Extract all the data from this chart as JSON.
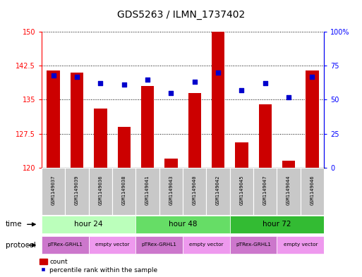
{
  "title": "GDS5263 / ILMN_1737402",
  "samples": [
    "GSM1149037",
    "GSM1149039",
    "GSM1149036",
    "GSM1149038",
    "GSM1149041",
    "GSM1149043",
    "GSM1149040",
    "GSM1149042",
    "GSM1149045",
    "GSM1149047",
    "GSM1149044",
    "GSM1149046"
  ],
  "counts": [
    141.5,
    141.0,
    133.0,
    129.0,
    138.0,
    122.0,
    136.5,
    150.0,
    125.5,
    134.0,
    121.5,
    141.5
  ],
  "percentiles": [
    68,
    67,
    62,
    61,
    65,
    55,
    63,
    70,
    57,
    62,
    52,
    67
  ],
  "ylim_left": [
    120,
    150
  ],
  "ylim_right": [
    0,
    100
  ],
  "yticks_left": [
    120,
    127.5,
    135,
    142.5,
    150
  ],
  "ytick_labels_left": [
    "120",
    "127.5",
    "135",
    "142.5",
    "150"
  ],
  "yticks_right": [
    0,
    25,
    50,
    75,
    100
  ],
  "ytick_labels_right": [
    "0",
    "25",
    "50",
    "75",
    "100%"
  ],
  "bar_color": "#cc0000",
  "dot_color": "#0000cc",
  "bar_bottom": 120,
  "time_groups": [
    {
      "label": "hour 24",
      "start": 0,
      "end": 4
    },
    {
      "label": "hour 48",
      "start": 4,
      "end": 8
    },
    {
      "label": "hour 72",
      "start": 8,
      "end": 12
    }
  ],
  "time_colors": [
    "#bbffbb",
    "#66dd66",
    "#33bb33"
  ],
  "protocol_groups": [
    {
      "label": "pTRex-GRHL1",
      "start": 0,
      "end": 2
    },
    {
      "label": "empty vector",
      "start": 2,
      "end": 4
    },
    {
      "label": "pTRex-GRHL1",
      "start": 4,
      "end": 6
    },
    {
      "label": "empty vector",
      "start": 6,
      "end": 8
    },
    {
      "label": "pTRex-GRHL1",
      "start": 8,
      "end": 10
    },
    {
      "label": "empty vector",
      "start": 10,
      "end": 12
    }
  ],
  "proto_colors": [
    "#cc77cc",
    "#ee99ee"
  ],
  "time_label": "time",
  "protocol_label": "protocol",
  "legend_count_label": "count",
  "legend_pct_label": "percentile rank within the sample",
  "bg_color": "#ffffff",
  "title_fontsize": 10,
  "tick_fontsize": 7,
  "bar_width": 0.55,
  "sample_bg": "#c8c8c8",
  "sample_border": "#ffffff"
}
